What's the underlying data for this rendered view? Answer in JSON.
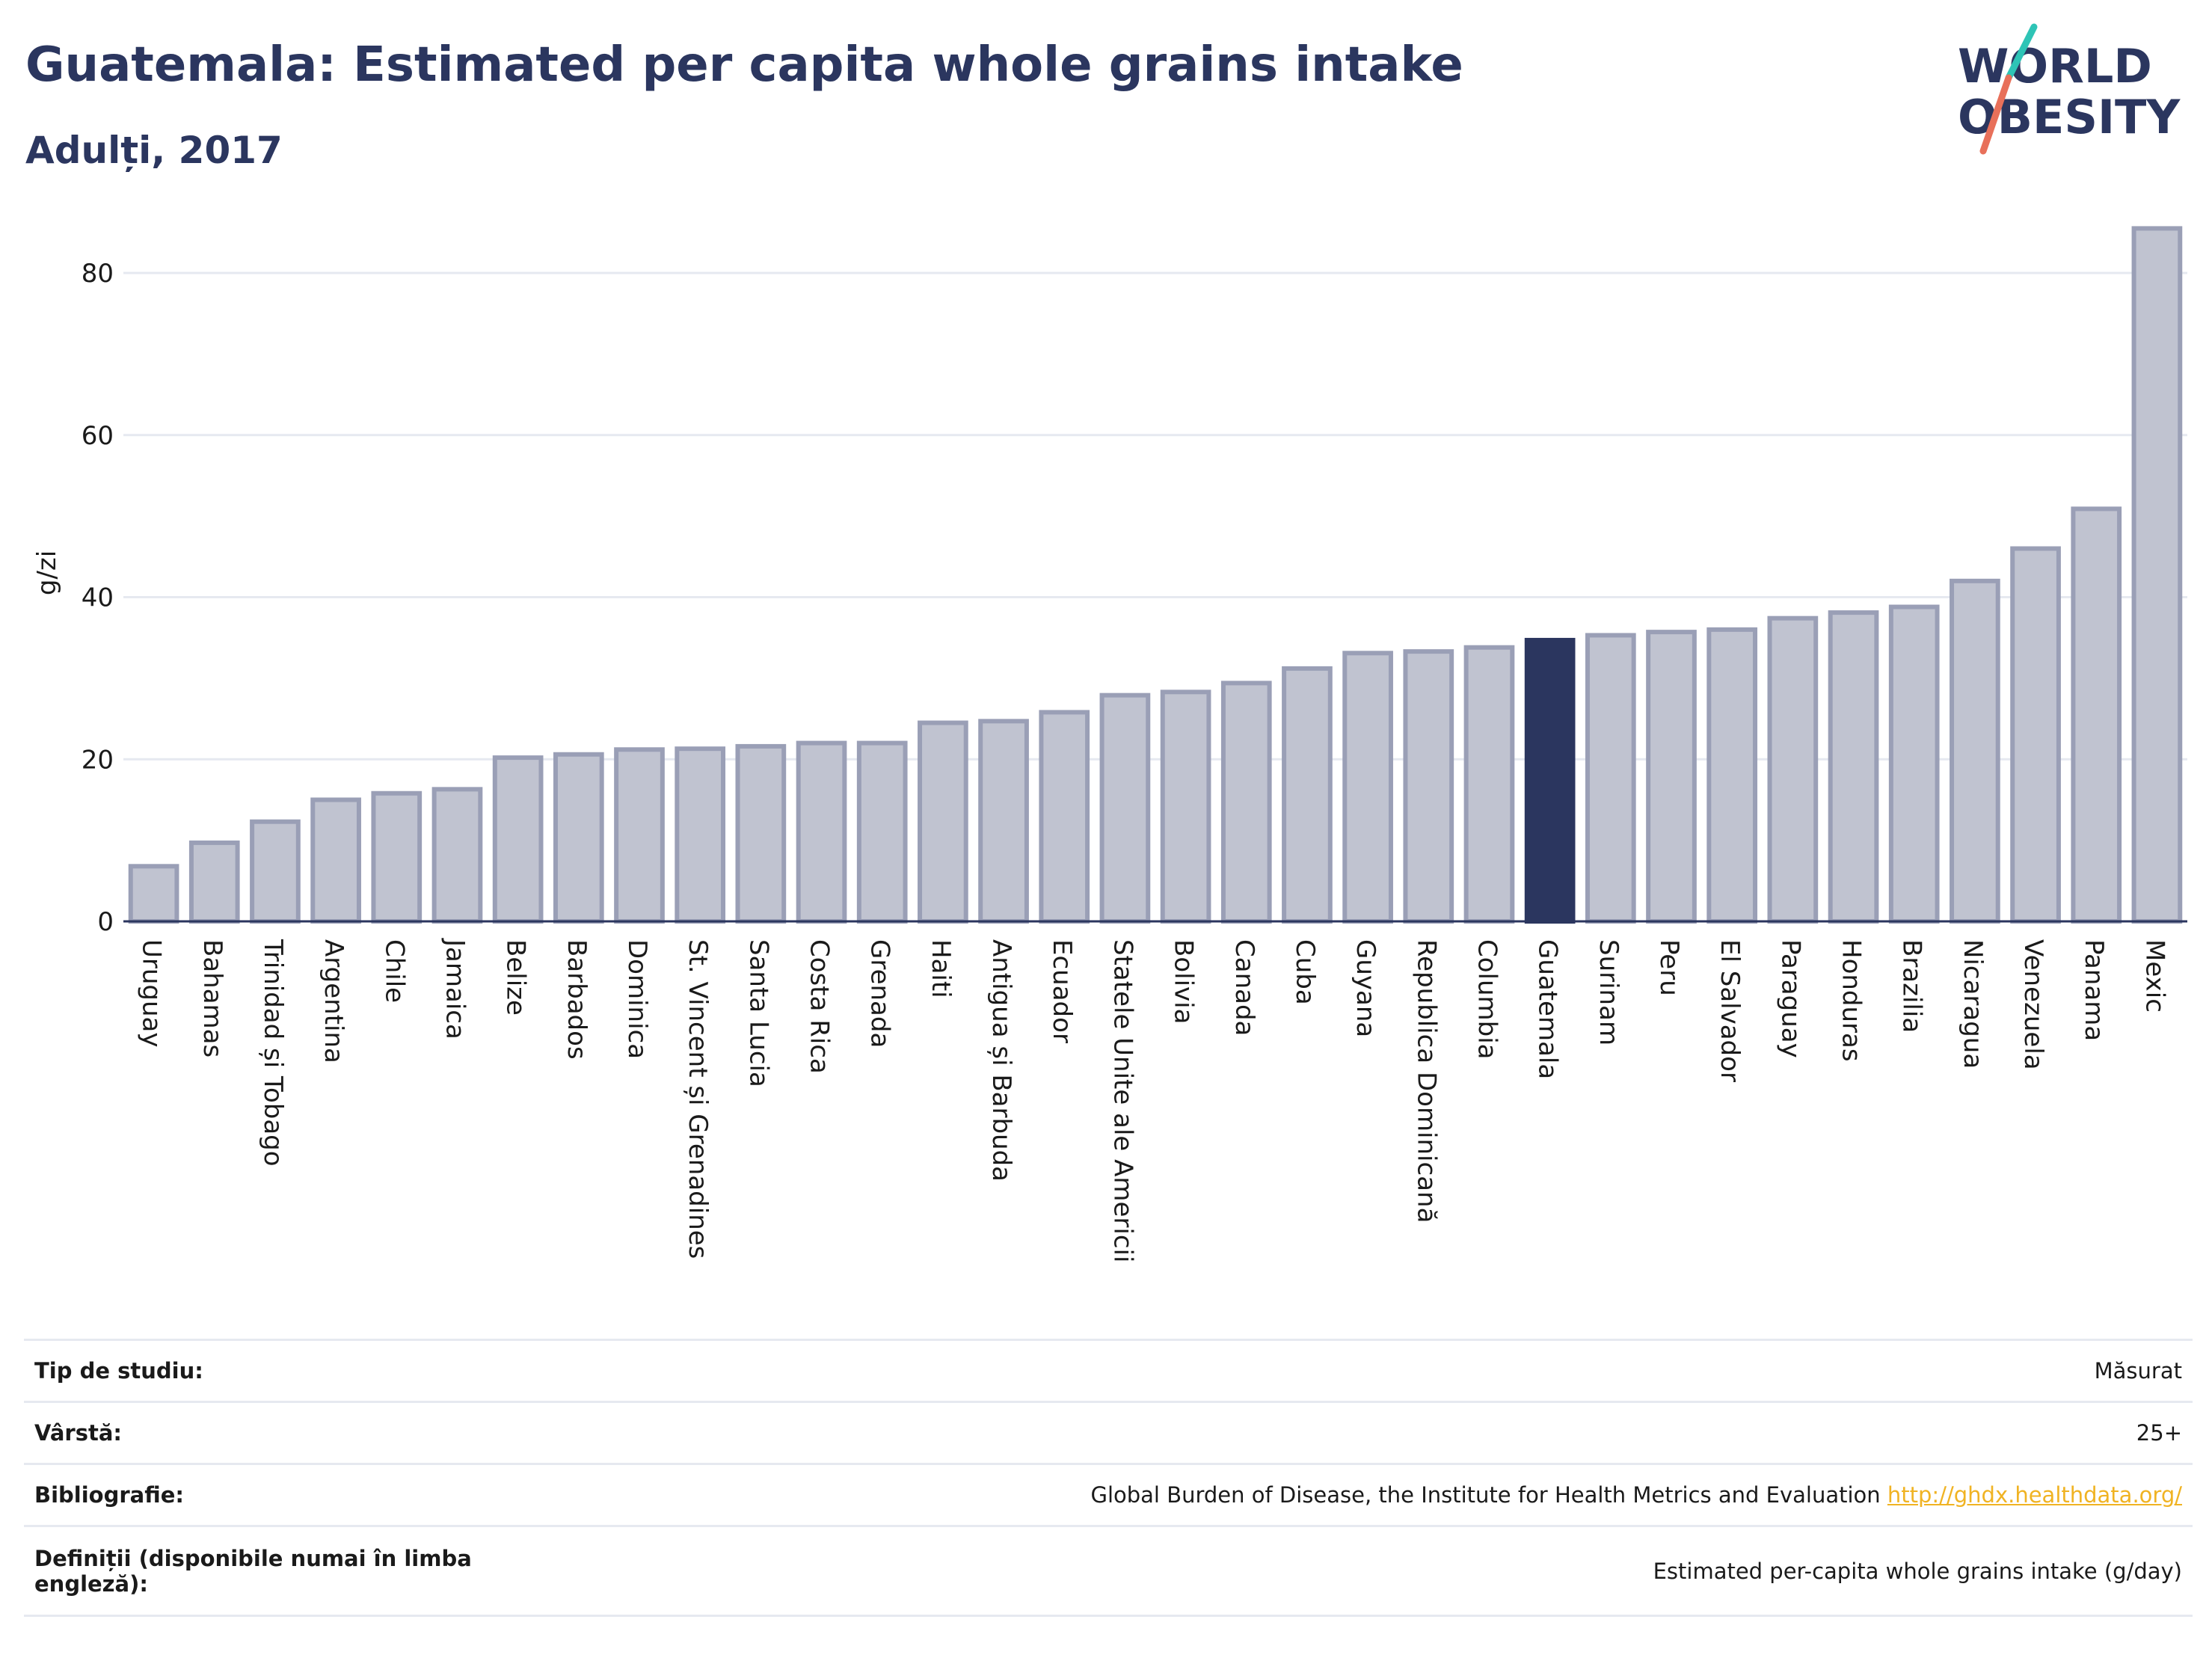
{
  "header": {
    "title": "Guatemala: Estimated per capita whole grains intake",
    "subtitle": "Adulți, 2017"
  },
  "logo": {
    "line1": "WORLD",
    "line2": "OBESITY"
  },
  "colors": {
    "highlight": "#2b365f",
    "bar": "#c0c3d0",
    "bar_stroke": "#9a9fb6",
    "grid": "#e6e9f0",
    "accent_teal": "#2ec4b6",
    "accent_red": "#e8705a"
  },
  "chart_data": {
    "type": "bar",
    "ylabel": "g/zi",
    "ylim": [
      0,
      86
    ],
    "yticks": [
      0,
      20,
      40,
      60,
      80
    ],
    "highlight": "Guatemala",
    "categories": [
      "Uruguay",
      "Bahamas",
      "Trinidad și Tobago",
      "Argentina",
      "Chile",
      "Jamaica",
      "Belize",
      "Barbados",
      "Dominica",
      "St. Vincent și Grenadines",
      "Santa Lucia",
      "Costa Rica",
      "Grenada",
      "Haiti",
      "Antigua și Barbuda",
      "Ecuador",
      "Statele Unite ale Americii",
      "Bolivia",
      "Canada",
      "Cuba",
      "Guyana",
      "Republica Dominicană",
      "Columbia",
      "Guatemala",
      "Surinam",
      "Peru",
      "El Salvador",
      "Paraguay",
      "Honduras",
      "Brazilia",
      "Nicaragua",
      "Venezuela",
      "Panama",
      "Mexic"
    ],
    "values": [
      6.8,
      9.7,
      12.3,
      15.0,
      15.8,
      16.3,
      20.2,
      20.6,
      21.2,
      21.3,
      21.6,
      22.0,
      22.0,
      24.5,
      24.7,
      25.8,
      27.9,
      28.3,
      29.4,
      31.2,
      33.1,
      33.3,
      33.8,
      34.7,
      35.3,
      35.7,
      36.0,
      37.4,
      38.1,
      38.8,
      42.0,
      46.0,
      50.9,
      85.5
    ]
  },
  "meta": {
    "rows": [
      {
        "label": "Tip de studiu:",
        "value": "Măsurat"
      },
      {
        "label": "Vârstă:",
        "value": "25+"
      },
      {
        "label": "Bibliografie:",
        "value": "Global Burden of Disease, the Institute for Health Metrics and Evaluation",
        "link": "http://ghdx.healthdata.org/"
      },
      {
        "label": "Definiții (disponibile numai în limba engleză):",
        "value": "Estimated per-capita whole grains intake (g/day)"
      }
    ]
  }
}
